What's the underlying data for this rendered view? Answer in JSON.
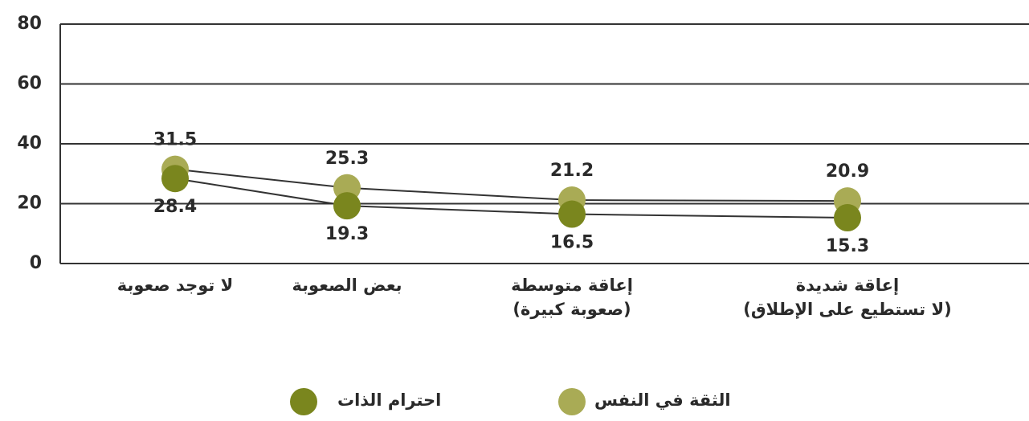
{
  "chart_data": {
    "type": "line",
    "categories": [
      "لا توجد صعوبة",
      "بعض الصعوبة",
      "إعاقة متوسطة\n(صعوبة كبيرة)",
      "إعاقة شديدة\n(لا تستطيع على الإطلاق)"
    ],
    "series": [
      {
        "name": "الثقة في النفس",
        "color": "#a9ab55",
        "values": [
          31.5,
          25.3,
          21.2,
          20.9
        ]
      },
      {
        "name": "احترام الذات",
        "color": "#7a861e",
        "values": [
          28.4,
          19.3,
          16.5,
          15.3
        ]
      }
    ],
    "ylim": [
      0,
      80
    ],
    "yticks": [
      0,
      20,
      40,
      60,
      80
    ],
    "grid": true
  }
}
